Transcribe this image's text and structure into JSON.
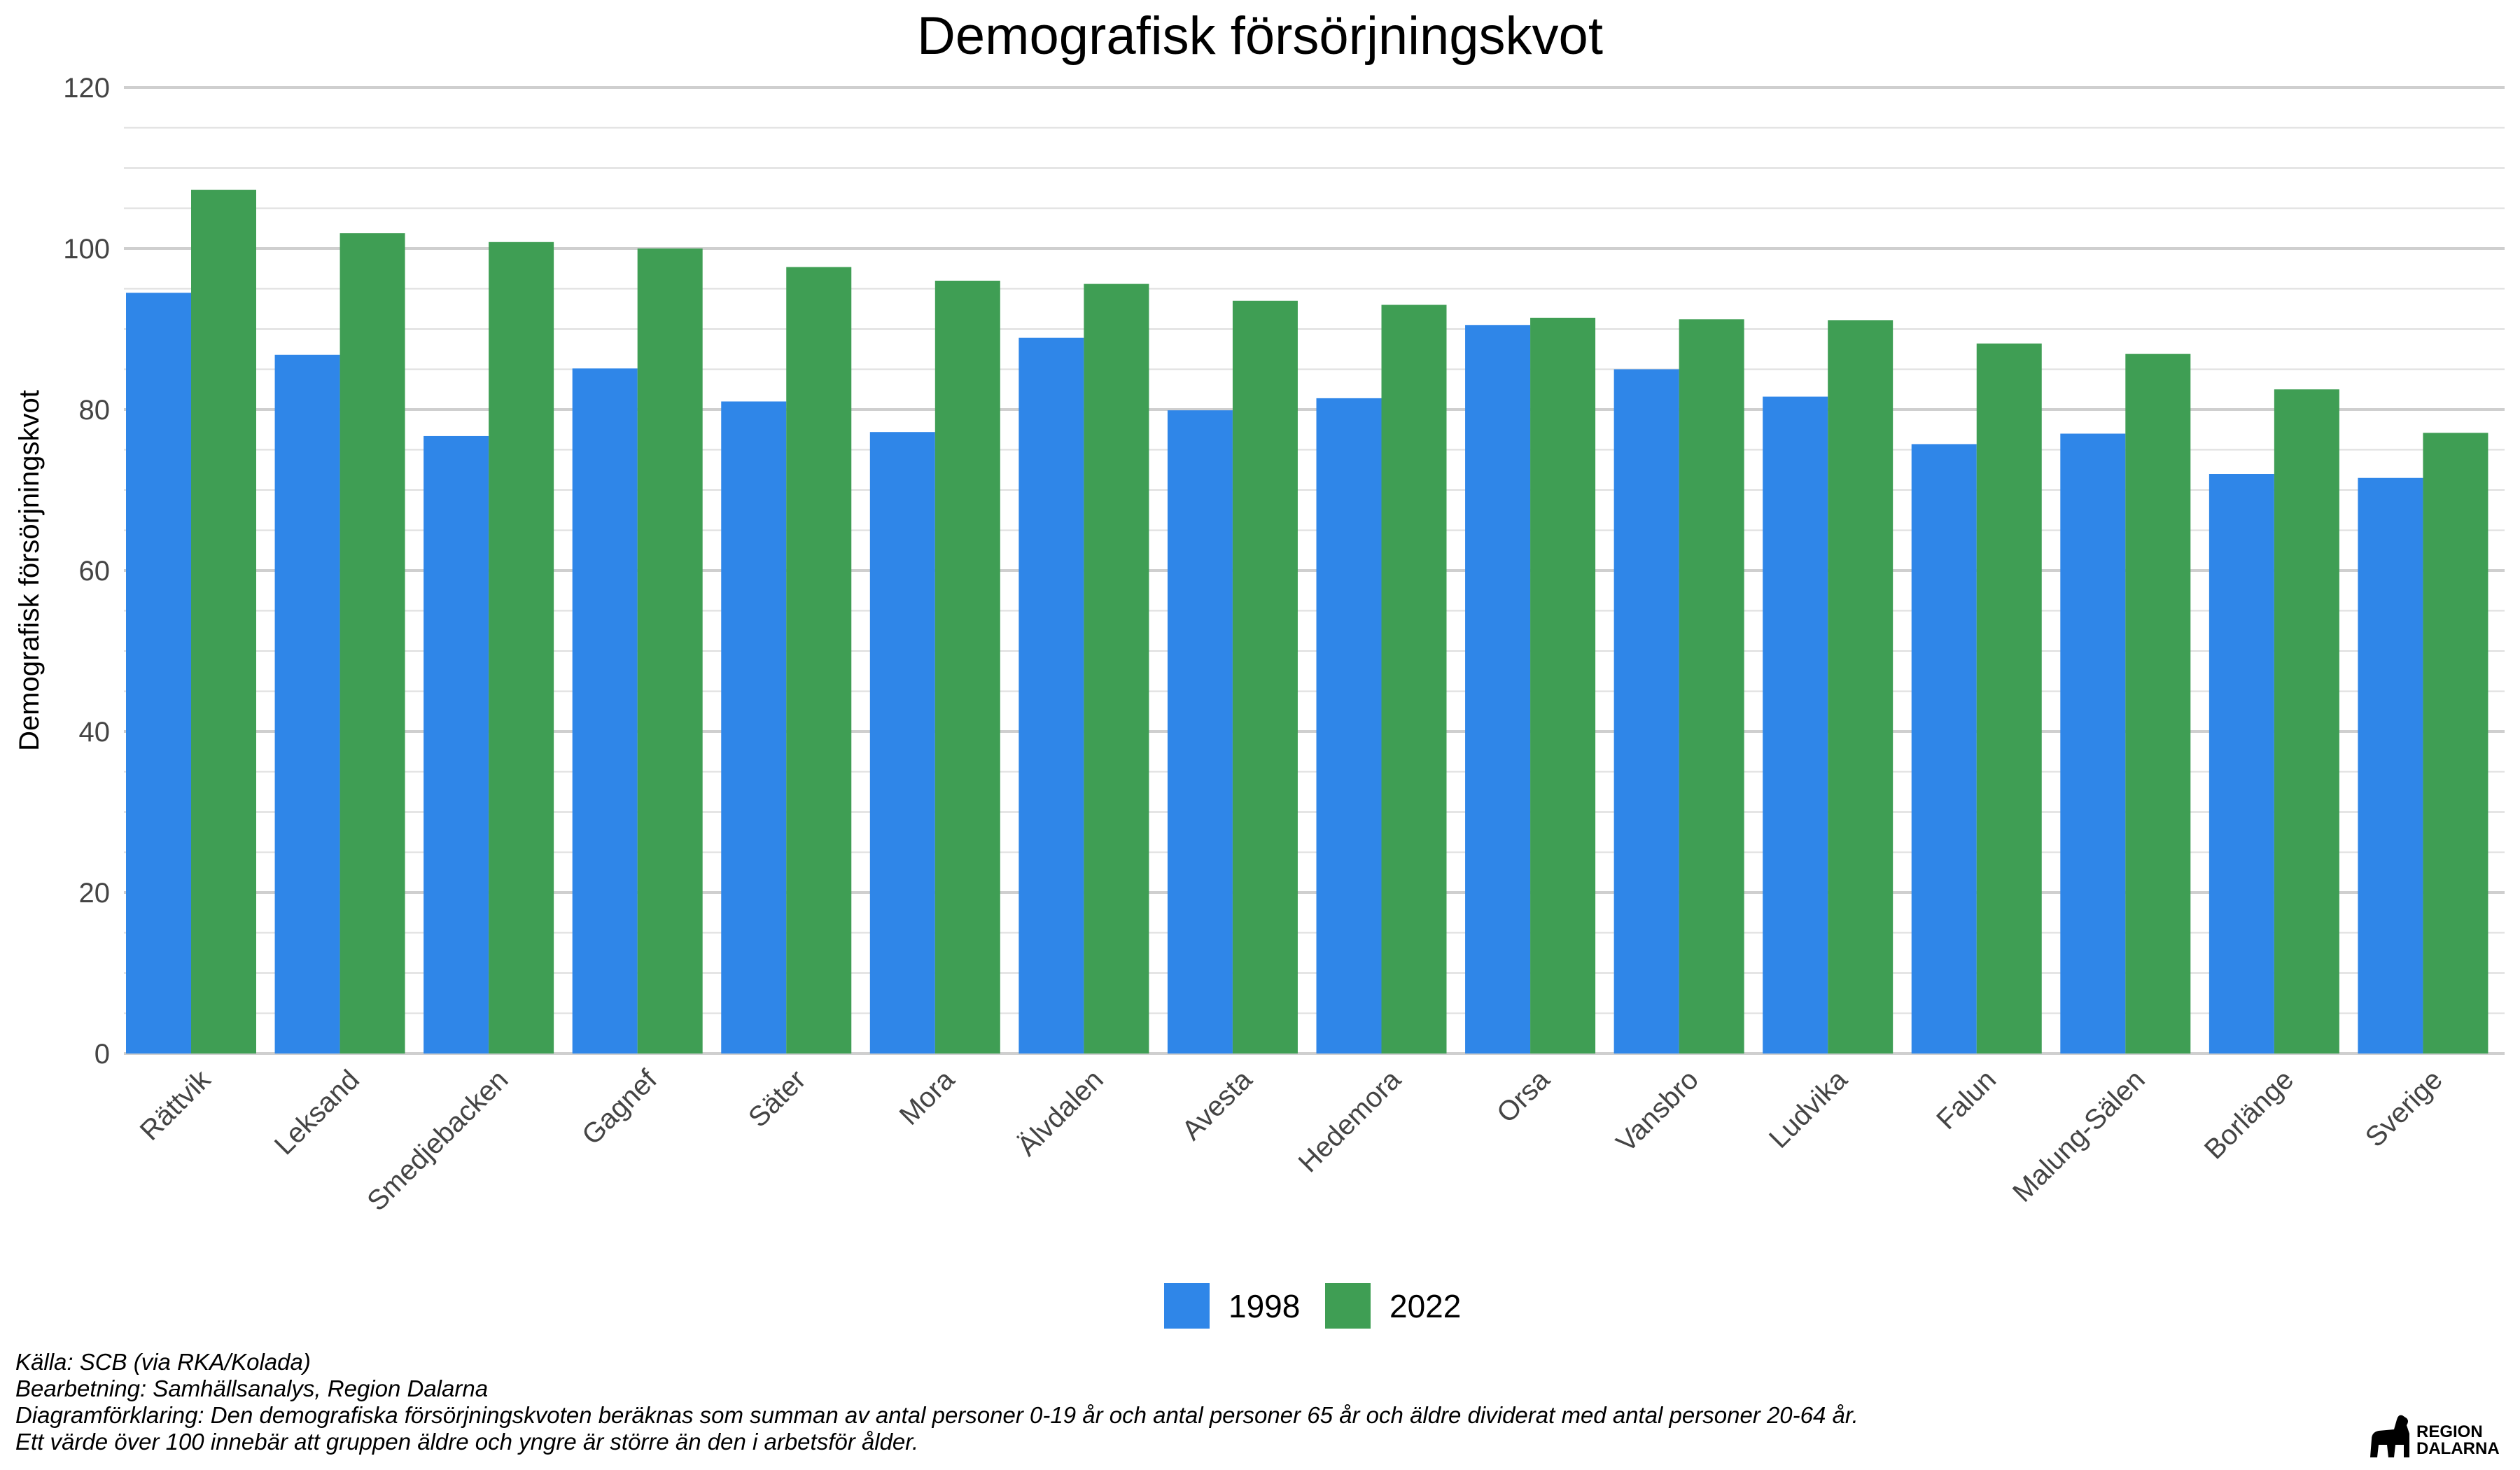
{
  "chart_data": {
    "type": "bar",
    "title": "Demografisk försörjningskvot",
    "xlabel": "",
    "ylabel": "Demografisk försörjningskvot",
    "ylim": [
      0,
      120
    ],
    "yticks": [
      "0",
      "20",
      "40",
      "60",
      "80",
      "100",
      "120"
    ],
    "grid": true,
    "legend_position": "bottom",
    "categories": [
      "Rättvik",
      "Leksand",
      "Smedjebacken",
      "Gagnef",
      "Säter",
      "Mora",
      "Älvdalen",
      "Avesta",
      "Hedemora",
      "Orsa",
      "Vansbro",
      "Ludvika",
      "Falun",
      "Malung-Sälen",
      "Borlänge",
      "Sverige"
    ],
    "series": [
      {
        "name": "1998",
        "color": "#2f86e8",
        "values": [
          94.5,
          86.8,
          76.7,
          85.1,
          81.0,
          77.2,
          88.9,
          79.9,
          81.4,
          90.5,
          85.0,
          81.6,
          75.7,
          77.0,
          72.0,
          71.5
        ]
      },
      {
        "name": "2022",
        "color": "#3f9e54",
        "values": [
          107.3,
          101.9,
          100.8,
          100.0,
          97.7,
          96.0,
          95.6,
          93.5,
          93.0,
          91.4,
          91.2,
          91.1,
          88.2,
          86.9,
          82.5,
          77.1
        ]
      }
    ]
  },
  "captions": [
    "Källa: SCB (via RKA/Kolada)",
    "Bearbetning: Samhällsanalys, Region Dalarna",
    "Diagramförklaring: Den demografiska försörjningskvoten beräknas som summan av antal personer 0-19 år och antal personer 65 år och äldre dividerat med antal personer 20-64 år.",
    "Ett värde över 100 innebär att gruppen äldre och yngre är större än den i arbetsför ålder."
  ],
  "logo": {
    "line1": "REGION",
    "line2": "DALARNA",
    "icon": "dala-horse-icon"
  }
}
